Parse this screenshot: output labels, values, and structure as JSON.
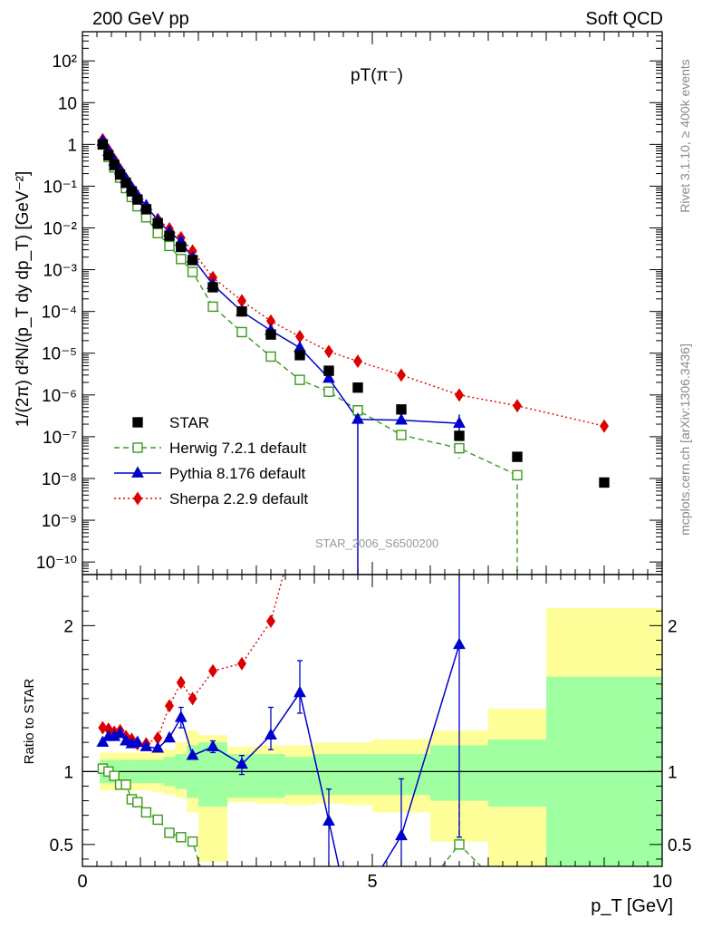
{
  "header": {
    "left": "200 GeV pp",
    "right": "Soft QCD",
    "side_top": "Rivet 3.1.10, ≥ 400k events",
    "side_bottom": "mcplots.cern.ch [arXiv:1306.3436]",
    "analysis_id": "STAR_2006_S6500200"
  },
  "colors": {
    "star": "#000000",
    "herwig": "#3a9a1a",
    "pythia": "#0000cc",
    "sherpa": "#dd0000",
    "band_inner": "#a0ffa0",
    "band_outer": "#ffff99"
  },
  "chart_data": [
    {
      "type": "scatter",
      "title": "pT(π⁻)",
      "ylabel": "1/(2π) d²N/(p_T dy dp_T) [GeV⁻²]",
      "yscale": "log",
      "xlim": [
        0,
        10
      ],
      "ylim": [
        5e-11,
        500
      ],
      "y_ticks": [
        {
          "value": 100,
          "label": "10²"
        },
        {
          "value": 10,
          "label": "10"
        },
        {
          "value": 1,
          "label": "1"
        },
        {
          "value": 0.1,
          "label": "10⁻¹"
        },
        {
          "value": 0.01,
          "label": "10⁻²"
        },
        {
          "value": 0.001,
          "label": "10⁻³"
        },
        {
          "value": 0.0001,
          "label": "10⁻⁴"
        },
        {
          "value": 1e-05,
          "label": "10⁻⁵"
        },
        {
          "value": 1e-06,
          "label": "10⁻⁶"
        },
        {
          "value": 1e-07,
          "label": "10⁻⁷"
        },
        {
          "value": 1e-08,
          "label": "10⁻⁸"
        },
        {
          "value": 1e-09,
          "label": "10⁻⁹"
        },
        {
          "value": 1e-10,
          "label": "10⁻¹⁰"
        }
      ],
      "legend_position": "bottom-left",
      "series": [
        {
          "name": "STAR",
          "style": "black squares",
          "x": [
            0.35,
            0.45,
            0.55,
            0.65,
            0.75,
            0.85,
            0.95,
            1.1,
            1.3,
            1.5,
            1.7,
            1.9,
            2.25,
            2.75,
            3.25,
            3.75,
            4.25,
            4.75,
            5.5,
            6.5,
            7.5,
            9.0
          ],
          "y": [
            1.0,
            0.55,
            0.32,
            0.19,
            0.12,
            0.075,
            0.048,
            0.028,
            0.013,
            0.0065,
            0.0035,
            0.0017,
            0.00038,
            0.0001,
            2.8e-05,
            9e-06,
            3.8e-06,
            1.5e-06,
            4.5e-07,
            1.05e-07,
            3.3e-08,
            8e-09
          ]
        },
        {
          "name": "Herwig 7.2.1 default",
          "style": "green dashed, open squares",
          "x": [
            0.35,
            0.45,
            0.55,
            0.65,
            0.75,
            0.85,
            0.95,
            1.1,
            1.3,
            1.5,
            1.7,
            1.9,
            2.25,
            2.75,
            3.25,
            3.75,
            4.25,
            4.75,
            5.5,
            6.5,
            7.5
          ],
          "y": [
            1.0,
            0.5,
            0.28,
            0.16,
            0.09,
            0.055,
            0.033,
            0.018,
            0.0075,
            0.0037,
            0.0018,
            0.00088,
            0.00013,
            3.2e-05,
            8.3e-06,
            2.3e-06,
            1.2e-06,
            4.3e-07,
            1.1e-07,
            5.3e-08,
            1.2e-08
          ],
          "yerr_down_to": {
            "6.5": 3e-08,
            "7.5": 3e-11
          }
        },
        {
          "name": "Pythia 8.176 default",
          "style": "blue solid, filled triangles",
          "x": [
            0.35,
            0.45,
            0.55,
            0.65,
            0.75,
            0.85,
            0.95,
            1.1,
            1.3,
            1.5,
            1.7,
            1.9,
            2.25,
            2.75,
            3.25,
            3.75,
            4.25,
            4.75,
            5.5,
            6.5
          ],
          "y": [
            1.2,
            0.68,
            0.4,
            0.24,
            0.15,
            0.093,
            0.06,
            0.034,
            0.015,
            0.008,
            0.0048,
            0.0019,
            0.00044,
            0.0001,
            3.5e-05,
            1.35e-05,
            2.5e-06,
            2.6e-07,
            2.5e-07,
            2.1e-07
          ],
          "yerr_down_to": {
            "4.75": 3e-11
          }
        },
        {
          "name": "Sherpa 2.2.9 default",
          "style": "red dotted, filled diamonds",
          "x": [
            0.35,
            0.45,
            0.55,
            0.65,
            0.75,
            0.85,
            0.95,
            1.1,
            1.3,
            1.5,
            1.7,
            1.9,
            2.25,
            2.75,
            3.25,
            3.75,
            4.25,
            4.75,
            5.5,
            6.5,
            7.5,
            9.0
          ],
          "y": [
            1.3,
            0.73,
            0.43,
            0.25,
            0.15,
            0.092,
            0.057,
            0.033,
            0.016,
            0.0095,
            0.0058,
            0.0028,
            0.00065,
            0.00018,
            5.9e-05,
            2.5e-05,
            1.1e-05,
            6.4e-06,
            3e-06,
            1e-06,
            5.5e-07,
            1.8e-07
          ]
        }
      ]
    },
    {
      "type": "scatter",
      "ylabel": "Ratio to STAR",
      "xlabel": "p_T [GeV]",
      "xlim": [
        0,
        10
      ],
      "ylim": [
        0.35,
        2.35
      ],
      "x_ticks": [
        0,
        5,
        10
      ],
      "y_ticks": [
        {
          "value": 2,
          "label": "2"
        },
        {
          "value": 1,
          "label": "1"
        },
        {
          "value": 0.5,
          "label": "0.5"
        }
      ],
      "bands": [
        {
          "x0": 0.3,
          "x1": 0.4,
          "inner": [
            0.92,
            1.08
          ],
          "outer": [
            0.87,
            1.13
          ]
        },
        {
          "x0": 0.4,
          "x1": 0.5,
          "inner": [
            0.92,
            1.08
          ],
          "outer": [
            0.87,
            1.13
          ]
        },
        {
          "x0": 0.5,
          "x1": 0.6,
          "inner": [
            0.92,
            1.08
          ],
          "outer": [
            0.87,
            1.13
          ]
        },
        {
          "x0": 0.6,
          "x1": 0.7,
          "inner": [
            0.92,
            1.08
          ],
          "outer": [
            0.87,
            1.13
          ]
        },
        {
          "x0": 0.7,
          "x1": 0.8,
          "inner": [
            0.92,
            1.08
          ],
          "outer": [
            0.87,
            1.13
          ]
        },
        {
          "x0": 0.8,
          "x1": 0.9,
          "inner": [
            0.92,
            1.08
          ],
          "outer": [
            0.87,
            1.13
          ]
        },
        {
          "x0": 0.9,
          "x1": 1.0,
          "inner": [
            0.92,
            1.08
          ],
          "outer": [
            0.87,
            1.13
          ]
        },
        {
          "x0": 1.0,
          "x1": 1.2,
          "inner": [
            0.92,
            1.08
          ],
          "outer": [
            0.87,
            1.13
          ]
        },
        {
          "x0": 1.2,
          "x1": 1.4,
          "inner": [
            0.92,
            1.08
          ],
          "outer": [
            0.86,
            1.14
          ]
        },
        {
          "x0": 1.4,
          "x1": 1.6,
          "inner": [
            0.9,
            1.1
          ],
          "outer": [
            0.84,
            1.15
          ]
        },
        {
          "x0": 1.6,
          "x1": 1.8,
          "inner": [
            0.88,
            1.12
          ],
          "outer": [
            0.82,
            1.2
          ]
        },
        {
          "x0": 1.8,
          "x1": 2.0,
          "inner": [
            0.82,
            1.18
          ],
          "outer": [
            0.72,
            1.28
          ]
        },
        {
          "x0": 2.0,
          "x1": 2.5,
          "inner": [
            0.76,
            1.2
          ],
          "outer": [
            0.38,
            1.25
          ]
        },
        {
          "x0": 2.5,
          "x1": 3.0,
          "inner": [
            0.82,
            1.12
          ],
          "outer": [
            0.79,
            1.17
          ]
        },
        {
          "x0": 3.0,
          "x1": 3.5,
          "inner": [
            0.82,
            1.12
          ],
          "outer": [
            0.78,
            1.18
          ]
        },
        {
          "x0": 3.5,
          "x1": 4.0,
          "inner": [
            0.84,
            1.1
          ],
          "outer": [
            0.77,
            1.18
          ]
        },
        {
          "x0": 4.0,
          "x1": 4.5,
          "inner": [
            0.84,
            1.12
          ],
          "outer": [
            0.78,
            1.2
          ]
        },
        {
          "x0": 4.5,
          "x1": 5.0,
          "inner": [
            0.84,
            1.12
          ],
          "outer": [
            0.77,
            1.2
          ]
        },
        {
          "x0": 5.0,
          "x1": 6.0,
          "inner": [
            0.84,
            1.12
          ],
          "outer": [
            0.72,
            1.22
          ]
        },
        {
          "x0": 6.0,
          "x1": 7.0,
          "inner": [
            0.8,
            1.18
          ],
          "outer": [
            0.52,
            1.28
          ]
        },
        {
          "x0": 7.0,
          "x1": 8.0,
          "inner": [
            0.76,
            1.22
          ],
          "outer": [
            0.35,
            1.43
          ]
        },
        {
          "x0": 8.0,
          "x1": 10.0,
          "inner": [
            0.35,
            1.65
          ],
          "outer": [
            0.35,
            2.12
          ]
        }
      ],
      "series": [
        {
          "name": "Herwig 7.2.1 default",
          "x": [
            0.35,
            0.45,
            0.55,
            0.65,
            0.75,
            0.85,
            0.95,
            1.1,
            1.3,
            1.5,
            1.7,
            1.9,
            2.1,
            6.5,
            7.0
          ],
          "y": [
            1.02,
            1.0,
            0.97,
            0.91,
            0.91,
            0.81,
            0.79,
            0.72,
            0.67,
            0.58,
            0.55,
            0.52,
            0.26,
            0.5,
            0.34
          ]
        },
        {
          "name": "Pythia 8.176 default",
          "x": [
            0.35,
            0.45,
            0.55,
            0.65,
            0.75,
            0.85,
            0.95,
            1.1,
            1.3,
            1.5,
            1.7,
            1.9,
            2.25,
            2.75,
            3.25,
            3.75,
            4.25,
            4.45,
            5.1,
            5.5,
            6.5
          ],
          "y": [
            1.2,
            1.24,
            1.24,
            1.26,
            1.21,
            1.19,
            1.2,
            1.17,
            1.16,
            1.23,
            1.37,
            1.11,
            1.17,
            1.05,
            1.25,
            1.54,
            0.66,
            0.3,
            0.3,
            0.56,
            1.87
          ],
          "err": {
            "1.7": [
              1.3,
              1.44
            ],
            "2.25": [
              1.13,
              1.21
            ],
            "2.75": [
              0.98,
              1.11
            ],
            "3.25": [
              1.15,
              1.44
            ],
            "3.75": [
              1.4,
              1.76
            ],
            "4.25": [
              0.3,
              0.88
            ],
            "5.5": [
              0.3,
              0.95
            ],
            "6.5": [
              0.55,
              2.4
            ]
          }
        },
        {
          "name": "Sherpa 2.2.9 default",
          "x": [
            0.35,
            0.45,
            0.55,
            0.65,
            0.75,
            0.85,
            0.95,
            1.1,
            1.3,
            1.5,
            1.7,
            1.9,
            2.25,
            2.75,
            3.25,
            3.5
          ],
          "y": [
            1.3,
            1.29,
            1.27,
            1.28,
            1.24,
            1.22,
            1.19,
            1.19,
            1.23,
            1.45,
            1.61,
            1.5,
            1.69,
            1.74,
            2.03,
            2.4
          ]
        }
      ]
    }
  ]
}
